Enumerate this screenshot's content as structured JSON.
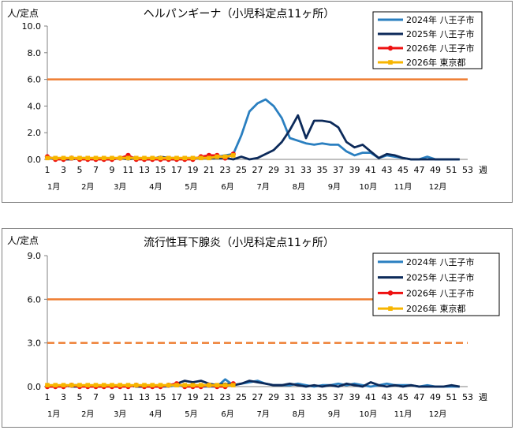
{
  "colors": {
    "s2024": "#2a7fc0",
    "s2025": "#0c2a5a",
    "s2026": "#ee1111",
    "tokyo": "#f7b500",
    "threshold": "#ee7d31",
    "axis": "#808080"
  },
  "chart_data": [
    {
      "type": "line",
      "title": "ヘルパンギーナ（小児科定点11ヶ所）",
      "ylabel": "人/定点",
      "xlabel": "週",
      "ylim": [
        0,
        10
      ],
      "xlim": [
        1,
        53
      ],
      "yticks": [
        "0.0",
        "2.0",
        "4.0",
        "6.0",
        "8.0",
        "10.0"
      ],
      "xticks": [
        "1",
        "3",
        "5",
        "7",
        "9",
        "11",
        "13",
        "15",
        "17",
        "19",
        "21",
        "23",
        "25",
        "27",
        "29",
        "31",
        "33",
        "35",
        "37",
        "39",
        "41",
        "43",
        "45",
        "47",
        "49",
        "51",
        "53"
      ],
      "months": [
        "1月",
        "2月",
        "3月",
        "4月",
        "5月",
        "6月",
        "7月",
        "8月",
        "9月",
        "10月",
        "11月",
        "12月"
      ],
      "grid": false,
      "legend_position": "top-right",
      "series": [
        {
          "name": "2024年 八王子市",
          "key": "s2024",
          "x": [
            1,
            2,
            3,
            4,
            5,
            6,
            7,
            8,
            9,
            10,
            11,
            12,
            13,
            14,
            15,
            16,
            17,
            18,
            19,
            20,
            21,
            22,
            23,
            24,
            25,
            26,
            27,
            28,
            29,
            30,
            31,
            32,
            33,
            34,
            35,
            36,
            37,
            38,
            39,
            40,
            41,
            42,
            43,
            44,
            45,
            46,
            47,
            48,
            49,
            50,
            51,
            52
          ],
          "values": [
            0.1,
            0.0,
            0.1,
            0.0,
            0.1,
            0.1,
            0.0,
            0.1,
            0.0,
            0.1,
            0.2,
            0.1,
            0.0,
            0.1,
            0.1,
            0.0,
            0.0,
            0.1,
            0.1,
            0.1,
            0.2,
            0.2,
            0.3,
            0.4,
            1.8,
            3.6,
            4.2,
            4.5,
            4.0,
            3.1,
            1.6,
            1.4,
            1.2,
            1.1,
            1.2,
            1.1,
            1.1,
            0.6,
            0.3,
            0.5,
            0.5,
            0.1,
            0.3,
            0.2,
            0.1,
            0.0,
            0.0,
            0.2,
            0.0,
            0.0,
            0.0,
            0.0
          ]
        },
        {
          "name": "2025年 八王子市",
          "key": "s2025",
          "x": [
            1,
            2,
            3,
            4,
            5,
            6,
            7,
            8,
            9,
            10,
            11,
            12,
            13,
            14,
            15,
            16,
            17,
            18,
            19,
            20,
            21,
            22,
            23,
            24,
            25,
            26,
            27,
            28,
            29,
            30,
            31,
            32,
            33,
            34,
            35,
            36,
            37,
            38,
            39,
            40,
            41,
            42,
            43,
            44,
            45,
            46,
            47,
            48,
            49,
            50,
            51,
            52
          ],
          "values": [
            0.1,
            0.1,
            0.0,
            0.0,
            0.1,
            0.0,
            0.1,
            0.0,
            0.0,
            0.1,
            0.0,
            0.1,
            0.0,
            0.0,
            0.2,
            0.1,
            0.1,
            0.0,
            0.1,
            0.1,
            0.1,
            0.1,
            0.1,
            0.0,
            0.2,
            0.0,
            0.1,
            0.4,
            0.7,
            1.3,
            2.2,
            3.3,
            1.6,
            2.9,
            2.9,
            2.8,
            2.4,
            1.3,
            0.9,
            1.1,
            0.6,
            0.1,
            0.4,
            0.3,
            0.1,
            0.0,
            0.0,
            0.0,
            0.0,
            0.0,
            0.0,
            0.0
          ]
        },
        {
          "name": "2026年 八王子市",
          "key": "s2026",
          "x": [
            1,
            2,
            3,
            4,
            5,
            6,
            7,
            8,
            9,
            10,
            11,
            12,
            13,
            14,
            15,
            16,
            17,
            18,
            19,
            20,
            21,
            22,
            23,
            24
          ],
          "values": [
            0.2,
            0.0,
            0.0,
            0.1,
            0.0,
            0.0,
            0.0,
            0.0,
            0.0,
            0.1,
            0.3,
            0.0,
            0.0,
            0.0,
            0.0,
            0.0,
            0.0,
            0.0,
            0.0,
            0.2,
            0.3,
            0.3,
            0.1,
            0.4
          ]
        },
        {
          "name": "2026年 東京都",
          "key": "tokyo",
          "x": [
            1,
            2,
            3,
            4,
            5,
            6,
            7,
            8,
            9,
            10,
            11,
            12,
            13,
            14,
            15,
            16,
            17,
            18,
            19,
            20,
            21,
            22,
            23,
            24
          ],
          "values": [
            0.1,
            0.1,
            0.1,
            0.1,
            0.1,
            0.1,
            0.1,
            0.1,
            0.1,
            0.1,
            0.1,
            0.1,
            0.1,
            0.1,
            0.1,
            0.1,
            0.1,
            0.1,
            0.1,
            0.1,
            0.1,
            0.2,
            0.2,
            0.3
          ]
        }
      ],
      "thresholds": [
        {
          "value": 6.0,
          "style": "solid"
        }
      ]
    },
    {
      "type": "line",
      "title": "流行性耳下腺炎（小児科定点11ヶ所）",
      "ylabel": "人/定点",
      "xlabel": "週",
      "ylim": [
        0,
        9
      ],
      "xlim": [
        1,
        53
      ],
      "yticks": [
        "0.0",
        "3.0",
        "6.0",
        "9.0"
      ],
      "xticks": [
        "1",
        "3",
        "5",
        "7",
        "9",
        "11",
        "13",
        "15",
        "17",
        "19",
        "21",
        "23",
        "25",
        "27",
        "29",
        "31",
        "33",
        "35",
        "37",
        "39",
        "41",
        "43",
        "45",
        "47",
        "49",
        "51",
        "53"
      ],
      "months": [
        "1月",
        "2月",
        "3月",
        "4月",
        "5月",
        "6月",
        "7月",
        "8月",
        "9月",
        "10月",
        "11月",
        "12月"
      ],
      "grid": false,
      "legend_position": "top-right",
      "series": [
        {
          "name": "2024年 八王子市",
          "key": "s2024",
          "x": [
            1,
            2,
            3,
            4,
            5,
            6,
            7,
            8,
            9,
            10,
            11,
            12,
            13,
            14,
            15,
            16,
            17,
            18,
            19,
            20,
            21,
            22,
            23,
            24,
            25,
            26,
            27,
            28,
            29,
            30,
            31,
            32,
            33,
            34,
            35,
            36,
            37,
            38,
            39,
            40,
            41,
            42,
            43,
            44,
            45,
            46,
            47,
            48,
            49,
            50,
            51,
            52
          ],
          "values": [
            0.0,
            0.1,
            0.0,
            0.1,
            0.1,
            0.0,
            0.0,
            0.1,
            0.0,
            0.0,
            0.1,
            0.0,
            0.0,
            0.1,
            0.0,
            0.0,
            0.1,
            0.0,
            0.1,
            0.0,
            0.0,
            0.0,
            0.5,
            0.1,
            0.2,
            0.3,
            0.4,
            0.2,
            0.1,
            0.1,
            0.1,
            0.2,
            0.1,
            0.0,
            0.1,
            0.1,
            0.2,
            0.1,
            0.2,
            0.1,
            0.0,
            0.1,
            0.2,
            0.1,
            0.1,
            0.1,
            0.0,
            0.1,
            0.0,
            0.0,
            0.0,
            0.0
          ]
        },
        {
          "name": "2025年 八王子市",
          "key": "s2025",
          "x": [
            1,
            2,
            3,
            4,
            5,
            6,
            7,
            8,
            9,
            10,
            11,
            12,
            13,
            14,
            15,
            16,
            17,
            18,
            19,
            20,
            21,
            22,
            23,
            24,
            25,
            26,
            27,
            28,
            29,
            30,
            31,
            32,
            33,
            34,
            35,
            36,
            37,
            38,
            39,
            40,
            41,
            42,
            43,
            44,
            45,
            46,
            47,
            48,
            49,
            50,
            51,
            52
          ],
          "values": [
            0.0,
            0.0,
            0.1,
            0.0,
            0.0,
            0.1,
            0.0,
            0.0,
            0.1,
            0.0,
            0.1,
            0.0,
            0.0,
            0.0,
            0.0,
            0.1,
            0.2,
            0.4,
            0.3,
            0.4,
            0.2,
            0.1,
            0.2,
            0.1,
            0.2,
            0.4,
            0.3,
            0.2,
            0.1,
            0.1,
            0.2,
            0.1,
            0.0,
            0.1,
            0.0,
            0.1,
            0.0,
            0.2,
            0.1,
            0.0,
            0.3,
            0.1,
            0.0,
            0.1,
            0.0,
            0.1,
            0.0,
            0.0,
            0.0,
            0.0,
            0.1,
            0.0
          ]
        },
        {
          "name": "2026年 八王子市",
          "key": "s2026",
          "x": [
            1,
            2,
            3,
            4,
            5,
            6,
            7,
            8,
            9,
            10,
            11,
            12,
            13,
            14,
            15,
            16,
            17,
            18,
            19,
            20,
            21,
            22,
            23,
            24
          ],
          "values": [
            0.0,
            0.0,
            0.0,
            0.1,
            0.0,
            0.0,
            0.0,
            0.0,
            0.0,
            0.0,
            0.0,
            0.1,
            0.0,
            0.0,
            0.0,
            0.1,
            0.2,
            0.0,
            0.0,
            0.0,
            0.1,
            0.0,
            0.0,
            0.2
          ]
        },
        {
          "name": "2026年 東京都",
          "key": "tokyo",
          "x": [
            1,
            2,
            3,
            4,
            5,
            6,
            7,
            8,
            9,
            10,
            11,
            12,
            13,
            14,
            15,
            16,
            17,
            18,
            19,
            20,
            21,
            22,
            23,
            24
          ],
          "values": [
            0.1,
            0.1,
            0.1,
            0.1,
            0.1,
            0.1,
            0.1,
            0.1,
            0.1,
            0.1,
            0.1,
            0.1,
            0.1,
            0.1,
            0.1,
            0.1,
            0.1,
            0.1,
            0.1,
            0.1,
            0.1,
            0.1,
            0.1,
            0.1
          ]
        }
      ],
      "thresholds": [
        {
          "value": 6.0,
          "style": "solid"
        },
        {
          "value": 3.0,
          "style": "dashed"
        }
      ]
    }
  ]
}
